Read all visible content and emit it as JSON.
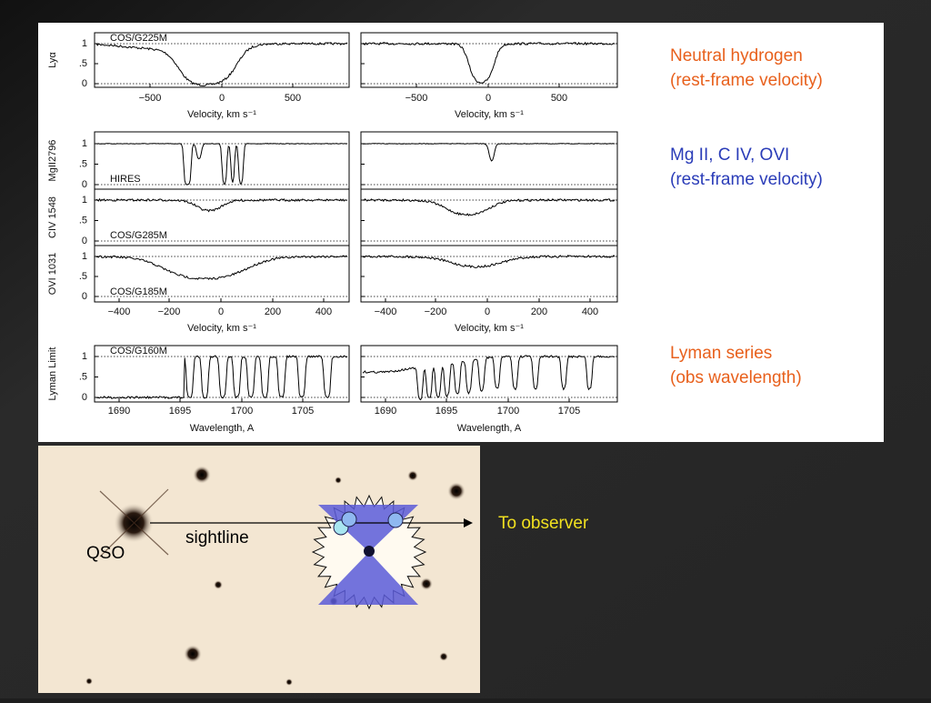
{
  "figure": {
    "rows": [
      {
        "ylabel": "Lyα",
        "instrument": "COS/G225M"
      },
      {
        "ylabel": "MgII2796",
        "instrument": "HIRES"
      },
      {
        "ylabel": "CIV 1548",
        "instrument": "COS/G285M"
      },
      {
        "ylabel": "OVI 1031",
        "instrument": "COS/G185M"
      },
      {
        "ylabel": "Lyman Limit",
        "instrument": "COS/G160M"
      }
    ],
    "yticks": [
      "1",
      ".5",
      "0"
    ],
    "axes": [
      {
        "ticks": [
          "−500",
          "0",
          "500"
        ],
        "label": "Velocity, km s⁻¹"
      },
      {
        "ticks": [
          "−400",
          "−200",
          "0",
          "200",
          "400"
        ],
        "label": "Velocity, km s⁻¹"
      },
      {
        "ticks": [
          "1690",
          "1695",
          "1700",
          "1705"
        ],
        "label": "Wavelength, A"
      }
    ]
  },
  "annotations": [
    {
      "lines": [
        "Neutral hydrogen",
        "(rest-frame velocity)"
      ]
    },
    {
      "lines": [
        "Mg II, C IV, OVI",
        "(rest-frame velocity)"
      ]
    },
    {
      "lines": [
        "Lyman series",
        "(obs wavelength)"
      ]
    }
  ],
  "image": {
    "qso": "QSO",
    "sightline": "sightline",
    "observer": "To observer"
  }
}
